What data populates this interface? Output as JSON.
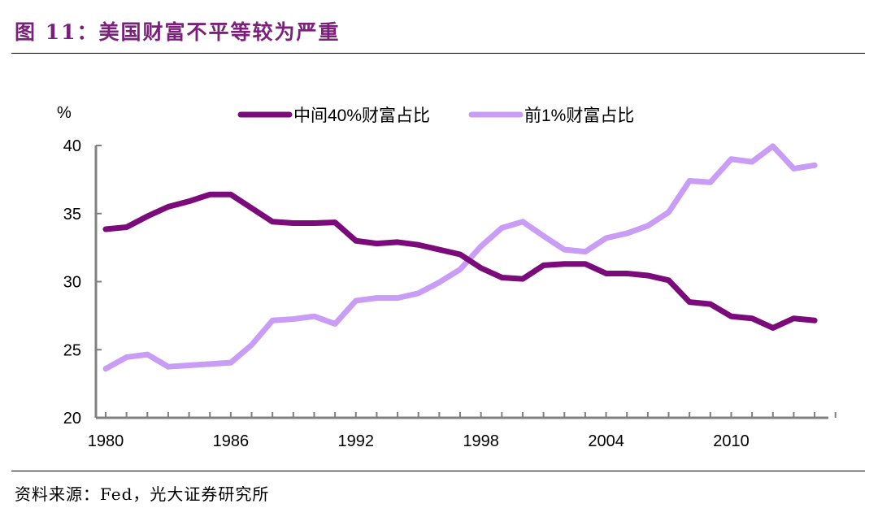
{
  "title": "图 11：美国财富不平等较为严重",
  "source": "资料来源：Fed，光大证券研究所",
  "chart_data": {
    "type": "line",
    "title": "图 11：美国财富不平等较为严重",
    "ylabel": "%",
    "xlabel": "",
    "ylim": [
      20,
      40
    ],
    "yticks": [
      20,
      25,
      30,
      35,
      40
    ],
    "xlim": [
      1980,
      2014
    ],
    "xtick_labels": [
      "1980",
      "1986",
      "1992",
      "1998",
      "2004",
      "2010"
    ],
    "legend_placement": "top",
    "grid": false,
    "x": [
      1980,
      1981,
      1982,
      1983,
      1984,
      1985,
      1986,
      1987,
      1988,
      1989,
      1990,
      1991,
      1992,
      1993,
      1994,
      1995,
      1996,
      1997,
      1998,
      1999,
      2000,
      2001,
      2002,
      2003,
      2004,
      2005,
      2006,
      2007,
      2008,
      2009,
      2010,
      2011,
      2012,
      2013,
      2014
    ],
    "series": [
      {
        "name": "中间40%财富占比",
        "color": "#7b0a7b",
        "values": [
          33.85,
          34.0,
          34.8,
          35.5,
          35.9,
          36.4,
          36.4,
          35.4,
          34.4,
          34.3,
          34.3,
          34.35,
          33.0,
          32.8,
          32.9,
          32.7,
          32.35,
          32.0,
          31.0,
          30.3,
          30.2,
          31.2,
          31.3,
          31.3,
          30.6,
          30.6,
          30.45,
          30.1,
          28.5,
          28.35,
          27.45,
          27.3,
          26.6,
          27.3,
          27.15
        ]
      },
      {
        "name": "前1%财富占比",
        "color": "#c99cf6",
        "values": [
          23.6,
          24.45,
          24.65,
          23.75,
          23.85,
          23.95,
          24.05,
          25.35,
          27.15,
          27.25,
          27.45,
          26.9,
          28.6,
          28.8,
          28.8,
          29.15,
          29.95,
          30.9,
          32.6,
          33.95,
          34.4,
          33.35,
          32.35,
          32.2,
          33.2,
          33.55,
          34.1,
          35.1,
          37.4,
          37.3,
          39.0,
          38.8,
          39.95,
          38.3,
          38.55
        ]
      }
    ]
  }
}
